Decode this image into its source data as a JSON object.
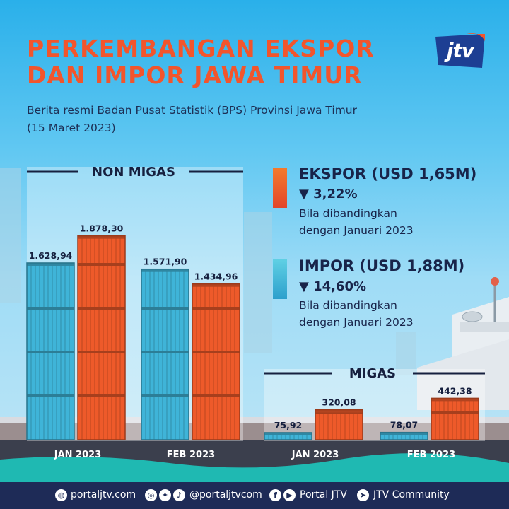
{
  "header": {
    "title_line1": "PERKEMBANGAN EKSPOR",
    "title_line2": "DAN IMPOR JAWA TIMUR",
    "subtitle_line1": "Berita resmi Badan Pusat Statistik (BPS) Provinsi Jawa Timur",
    "subtitle_line2": "(15 Maret 2023)",
    "logo_text": "jtv"
  },
  "legend": {
    "ekspor": {
      "title": "EKSPOR (USD 1,65M)",
      "change": "▼ 3,22%",
      "note_line1": "Bila dibandingkan",
      "note_line2": "dengan Januari 2023",
      "color": "#ee5a2a"
    },
    "impor": {
      "title": "IMPOR (USD 1,88M)",
      "change": "▼ 14,60%",
      "note_line1": "Bila dibandingkan",
      "note_line2": "dengan Januari 2023",
      "color": "#3fb4d8"
    }
  },
  "chart_data": [
    {
      "type": "bar",
      "title": "NON MIGAS",
      "categories": [
        "JAN 2023",
        "FEB 2023"
      ],
      "series": [
        {
          "name": "",
          "color": "#3fb4d8",
          "values": [
            1628.94,
            1571.9
          ],
          "labels": [
            "1.628,94",
            "1.571,90"
          ]
        },
        {
          "name": "",
          "color": "#ee5a2a",
          "values": [
            1878.3,
            1434.96
          ],
          "labels": [
            "1.878,30",
            "1.434,96"
          ]
        }
      ],
      "ylim": [
        0,
        2000
      ]
    },
    {
      "type": "bar",
      "title": "MIGAS",
      "categories": [
        "JAN 2023",
        "FEB 2023"
      ],
      "series": [
        {
          "name": "",
          "color": "#3fb4d8",
          "values": [
            75.92,
            78.07
          ],
          "labels": [
            "75,92",
            "78,07"
          ]
        },
        {
          "name": "",
          "color": "#ee5a2a",
          "values": [
            320.08,
            442.38
          ],
          "labels": [
            "320,08",
            "442,38"
          ]
        }
      ],
      "ylim": [
        0,
        700
      ]
    }
  ],
  "footer": {
    "website": "portaljtv.com",
    "social_handle": "@portaljtvcom",
    "facebook_youtube": "Portal JTV",
    "telegram": "JTV Community",
    "icons": [
      "globe-icon",
      "instagram-icon",
      "twitter-icon",
      "tiktok-icon",
      "facebook-icon",
      "youtube-icon",
      "telegram-icon"
    ]
  }
}
